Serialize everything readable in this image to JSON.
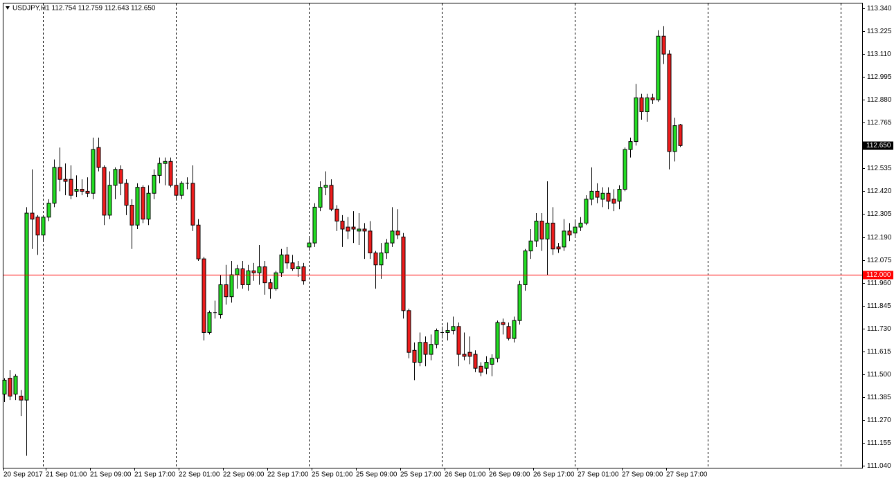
{
  "chart_data": {
    "type": "candlestick",
    "title": "USDJPY,H1  112.754 112.759 112.643 112.650",
    "categories": [
      "20 Sep 2017",
      null,
      null,
      null,
      null,
      null,
      null,
      "21 Sep 01:00",
      null,
      null,
      null,
      null,
      null,
      null,
      null,
      "21 Sep 09:00",
      null,
      null,
      null,
      null,
      null,
      null,
      null,
      "21 Sep 17:00",
      null,
      null,
      null,
      null,
      null,
      null,
      null,
      "22 Sep 01:00",
      null,
      null,
      null,
      null,
      null,
      null,
      null,
      "22 Sep 09:00",
      null,
      null,
      null,
      null,
      null,
      null,
      null,
      "22 Sep 17:00",
      null,
      null,
      null,
      null,
      null,
      null,
      null,
      "25 Sep 01:00",
      null,
      null,
      null,
      null,
      null,
      null,
      null,
      "25 Sep 09:00",
      null,
      null,
      null,
      null,
      null,
      null,
      null,
      "25 Sep 17:00",
      null,
      null,
      null,
      null,
      null,
      null,
      null,
      "26 Sep 01:00",
      null,
      null,
      null,
      null,
      null,
      null,
      null,
      "26 Sep 09:00",
      null,
      null,
      null,
      null,
      null,
      null,
      null,
      "26 Sep 17:00",
      null,
      null,
      null,
      null,
      null,
      null,
      null,
      "27 Sep 01:00",
      null,
      null,
      null,
      null,
      null,
      null,
      null,
      "27 Sep 09:00",
      null,
      null,
      null,
      null,
      null,
      null,
      null,
      "27 Sep 17:00",
      null,
      null,
      null
    ],
    "open": [
      111.4,
      111.48,
      111.4,
      111.39,
      111.37,
      112.31,
      112.29,
      112.2,
      112.29,
      112.36,
      112.54,
      112.48,
      112.48,
      112.42,
      112.43,
      112.42,
      112.41,
      112.64,
      112.54,
      112.3,
      112.45,
      112.53,
      112.46,
      112.35,
      112.25,
      112.44,
      112.28,
      112.41,
      112.5,
      112.56,
      112.57,
      112.45,
      112.4,
      112.46,
      112.46,
      112.25,
      112.08,
      111.71,
      111.81,
      111.8,
      111.95,
      111.89,
      112.0,
      112.03,
      111.95,
      112.02,
      112.01,
      112.04,
      111.96,
      111.93,
      112.01,
      112.1,
      112.06,
      112.03,
      112.04,
      112.14,
      112.16,
      112.34,
      112.44,
      112.45,
      112.33,
      112.27,
      112.24,
      112.24,
      112.22,
      112.23,
      112.22,
      112.11,
      112.05,
      112.11,
      112.16,
      112.22,
      112.19,
      111.82,
      111.62,
      111.56,
      111.66,
      111.6,
      111.65,
      111.71,
      111.71,
      111.72,
      111.74,
      111.6,
      111.61,
      111.6,
      111.54,
      111.53,
      111.55,
      111.58,
      111.76,
      111.74,
      111.68,
      111.77,
      111.95,
      112.12,
      112.17,
      112.27,
      112.18,
      112.26,
      112.14,
      112.14,
      112.22,
      112.21,
      112.24,
      112.26,
      112.38,
      112.42,
      112.38,
      112.41,
      112.38,
      112.37,
      112.43,
      112.63,
      112.67,
      112.89,
      112.82,
      112.89,
      112.88,
      113.2,
      113.11,
      112.62,
      112.754
    ],
    "high": [
      111.48,
      111.52,
      111.5,
      111.42,
      112.34,
      112.53,
      112.3,
      112.3,
      112.38,
      112.58,
      112.64,
      112.56,
      112.55,
      112.5,
      112.48,
      112.49,
      112.69,
      112.69,
      112.55,
      112.52,
      112.54,
      112.55,
      112.48,
      112.38,
      112.46,
      112.45,
      112.45,
      112.53,
      112.59,
      112.59,
      112.59,
      112.48,
      112.47,
      112.49,
      112.55,
      112.28,
      112.09,
      111.82,
      111.87,
      112.0,
      112.05,
      112.07,
      112.05,
      112.07,
      112.05,
      112.06,
      112.15,
      112.07,
      111.98,
      112.02,
      112.13,
      112.14,
      112.1,
      112.07,
      112.06,
      112.19,
      112.36,
      112.47,
      112.52,
      112.48,
      112.35,
      112.3,
      112.29,
      112.32,
      112.31,
      112.26,
      112.27,
      112.12,
      112.16,
      112.18,
      112.34,
      112.33,
      112.21,
      111.83,
      111.66,
      111.71,
      111.69,
      111.7,
      111.73,
      111.74,
      111.76,
      111.79,
      111.76,
      111.71,
      111.69,
      111.62,
      111.56,
      111.59,
      111.6,
      111.77,
      111.78,
      111.76,
      111.79,
      111.97,
      112.13,
      112.23,
      112.31,
      112.31,
      112.47,
      112.34,
      112.16,
      112.28,
      112.26,
      112.27,
      112.29,
      112.4,
      112.54,
      112.46,
      112.44,
      112.44,
      112.43,
      112.45,
      112.64,
      112.69,
      112.96,
      112.91,
      112.91,
      112.91,
      113.23,
      113.25,
      113.13,
      112.79,
      112.759
    ],
    "low": [
      111.36,
      111.37,
      111.37,
      111.29,
      111.09,
      112.13,
      112.1,
      112.17,
      112.27,
      112.34,
      112.42,
      112.4,
      112.38,
      112.39,
      112.4,
      112.39,
      112.38,
      112.52,
      112.25,
      112.28,
      112.38,
      112.4,
      112.3,
      112.13,
      112.23,
      112.26,
      112.25,
      112.38,
      112.46,
      112.45,
      112.44,
      112.38,
      112.38,
      112.43,
      112.22,
      112.07,
      111.67,
      111.7,
      111.78,
      111.78,
      111.85,
      111.86,
      111.93,
      111.93,
      111.92,
      111.97,
      111.95,
      111.9,
      111.88,
      111.92,
      111.99,
      112.03,
      112.02,
      111.99,
      111.95,
      112.12,
      112.14,
      112.32,
      112.4,
      112.32,
      112.22,
      112.14,
      112.18,
      112.16,
      112.15,
      112.08,
      112.08,
      111.93,
      111.98,
      112.08,
      112.14,
      112.18,
      111.78,
      111.58,
      111.47,
      111.54,
      111.54,
      111.57,
      111.63,
      111.68,
      111.67,
      111.7,
      111.54,
      111.57,
      111.55,
      111.51,
      111.49,
      111.5,
      111.49,
      111.56,
      111.7,
      111.67,
      111.66,
      111.75,
      111.92,
      112.08,
      112.14,
      112.12,
      112.0,
      112.1,
      112.11,
      112.12,
      112.17,
      112.19,
      112.22,
      112.25,
      112.35,
      112.36,
      112.34,
      112.33,
      112.32,
      112.33,
      112.42,
      112.59,
      112.65,
      112.78,
      112.77,
      112.86,
      112.87,
      113.06,
      112.53,
      112.57,
      112.643
    ],
    "close": [
      111.47,
      111.39,
      111.49,
      111.37,
      112.31,
      112.28,
      112.2,
      112.29,
      112.36,
      112.54,
      112.48,
      112.47,
      112.4,
      112.43,
      112.42,
      112.41,
      112.63,
      112.54,
      112.3,
      112.45,
      112.53,
      112.46,
      112.35,
      112.25,
      112.44,
      112.28,
      112.41,
      112.5,
      112.56,
      112.57,
      112.45,
      112.4,
      112.46,
      112.46,
      112.25,
      112.08,
      111.71,
      111.81,
      111.81,
      111.95,
      111.89,
      112.0,
      112.03,
      111.95,
      112.02,
      112.01,
      112.04,
      111.96,
      111.93,
      112.01,
      112.1,
      112.06,
      112.03,
      112.04,
      111.97,
      112.16,
      112.34,
      112.44,
      112.45,
      112.33,
      112.27,
      112.23,
      112.22,
      112.23,
      112.23,
      112.22,
      112.11,
      112.05,
      112.11,
      112.16,
      112.22,
      112.2,
      111.82,
      111.61,
      111.56,
      111.66,
      111.6,
      111.65,
      111.72,
      111.71,
      111.72,
      111.74,
      111.6,
      111.59,
      111.59,
      111.53,
      111.51,
      111.56,
      111.58,
      111.76,
      111.75,
      111.68,
      111.77,
      111.95,
      112.12,
      112.17,
      112.27,
      112.18,
      112.26,
      112.13,
      112.13,
      112.22,
      112.2,
      112.24,
      112.26,
      112.38,
      112.42,
      112.39,
      112.41,
      112.37,
      112.36,
      112.43,
      112.63,
      112.67,
      112.89,
      112.82,
      112.89,
      112.88,
      113.2,
      113.11,
      112.62,
      112.75,
      112.65
    ],
    "up_color": "#22dd22",
    "down_color": "#ee1c1c",
    "ylim": [
      111.026,
      113.368
    ],
    "yticks": [
      {
        "value": 113.34,
        "label": "113.340"
      },
      {
        "value": 113.225,
        "label": "113.225"
      },
      {
        "value": 113.11,
        "label": "113.110"
      },
      {
        "value": 112.995,
        "label": "112.995"
      },
      {
        "value": 112.88,
        "label": "112.880"
      },
      {
        "value": 112.765,
        "label": "112.765"
      },
      {
        "value": 112.535,
        "label": "112.535"
      },
      {
        "value": 112.42,
        "label": "112.420"
      },
      {
        "value": 112.305,
        "label": "112.305"
      },
      {
        "value": 112.19,
        "label": "112.190"
      },
      {
        "value": 112.075,
        "label": "112.075"
      },
      {
        "value": 111.96,
        "label": "111.960"
      },
      {
        "value": 111.845,
        "label": "111.845"
      },
      {
        "value": 111.73,
        "label": "111.730"
      },
      {
        "value": 111.615,
        "label": "111.615"
      },
      {
        "value": 111.5,
        "label": "111.500"
      },
      {
        "value": 111.385,
        "label": "111.385"
      },
      {
        "value": 111.27,
        "label": "111.270"
      },
      {
        "value": 111.155,
        "label": "111.155"
      },
      {
        "value": 111.04,
        "label": "111.040"
      }
    ],
    "hline": {
      "value": 112.0,
      "label": "112.000",
      "color": "#ff0000"
    },
    "last_price": {
      "value": 112.65,
      "label": "112.650"
    },
    "period_separators": true
  }
}
